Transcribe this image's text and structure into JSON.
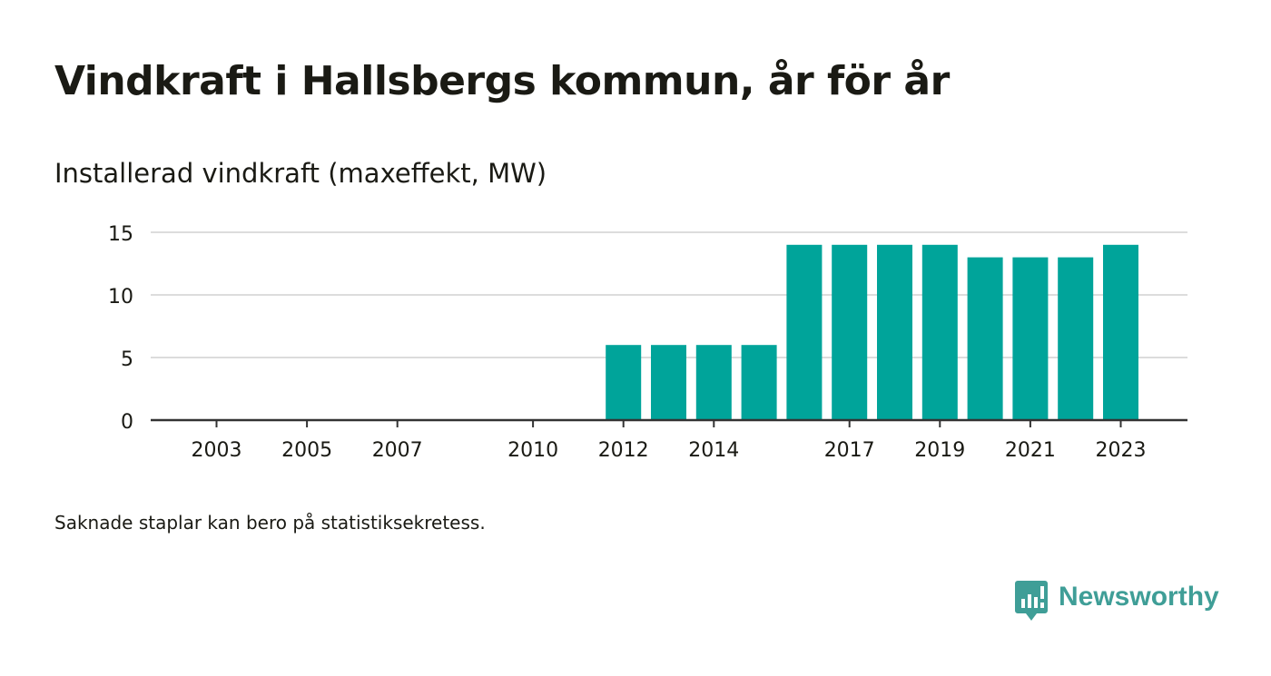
{
  "title": "Vindkraft i Hallsbergs kommun, år för år",
  "subtitle": "Installerad vindkraft (maxeffekt, MW)",
  "footnote": "Saknade staplar kan bero på statistiksekretess.",
  "brand": {
    "name": "Newsworthy",
    "color": "#3f9e97",
    "icon": "newsworthy-logo-icon"
  },
  "chart_data": {
    "type": "bar",
    "title": "",
    "ylabel": "Installerad vindkraft (maxeffekt, MW)",
    "xlabel": "",
    "ylim": [
      0,
      15
    ],
    "yticks": [
      0,
      5,
      10,
      15
    ],
    "xlim": [
      2001.5,
      2025
    ],
    "xticks": [
      2003,
      2005,
      2007,
      2010,
      2012,
      2014,
      2017,
      2019,
      2021,
      2023
    ],
    "grid": true,
    "legend": "none",
    "bar_color": "#00a49a",
    "categories": [
      2012,
      2013,
      2014,
      2015,
      2016,
      2017,
      2018,
      2019,
      2020,
      2021,
      2022,
      2023
    ],
    "values": [
      6,
      6,
      6,
      6,
      14,
      14,
      14,
      14,
      13,
      13,
      13,
      14
    ]
  }
}
